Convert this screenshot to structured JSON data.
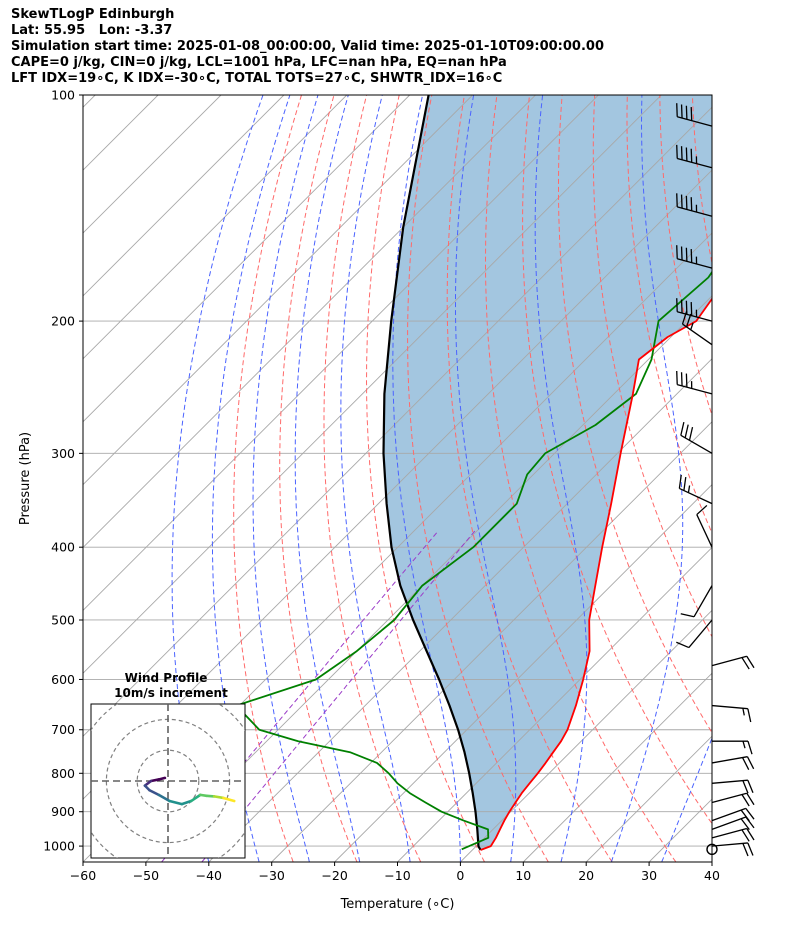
{
  "header": {
    "line1": "SkewTLogP Edinburgh",
    "line2": "Lat: 55.95   Lon: -3.37",
    "line3": "Simulation start time: 2025-01-08_00:00:00, Valid time: 2025-01-10T09:00:00.00",
    "line4": "CAPE=0 j/kg, CIN=0 j/kg, LCL=1001 hPa, LFC=nan hPa, EQ=nan hPa",
    "line5": "LFT IDX=19∘C, K IDX=-30∘C, TOTAL TOTS=27∘C, SHWTR_IDX=16∘C"
  },
  "chart_data": {
    "type": "skewt-logp",
    "xlabel": "Temperature (∘C)",
    "ylabel": "Pressure (hPa)",
    "xlim": [
      -60,
      40
    ],
    "ylim": [
      1050,
      100
    ],
    "y_scale": "log",
    "grid": true,
    "x_ticks": [
      -60,
      -50,
      -40,
      -30,
      -20,
      -10,
      0,
      10,
      20,
      30,
      40
    ],
    "y_ticks": [
      1000,
      900,
      800,
      700,
      600,
      500,
      400,
      300,
      200,
      100
    ],
    "colors": {
      "temperature": "#ff0000",
      "dewpoint": "#008000",
      "parcel": "#000000",
      "fill": "#a3c6e0",
      "dry_adiabats": "#ff6a6a",
      "moist_adiabats": "#4b63ff",
      "mixing_ratio": "#9b3cc8",
      "isotherms": "#a8a8a8"
    },
    "temperature": [
      {
        "p": 1012,
        "t": 1.3
      },
      {
        "p": 1000,
        "t": 2.3
      },
      {
        "p": 975,
        "t": 1.8
      },
      {
        "p": 950,
        "t": 1.1
      },
      {
        "p": 925,
        "t": 0.4
      },
      {
        "p": 900,
        "t": -0.2
      },
      {
        "p": 875,
        "t": -0.7
      },
      {
        "p": 850,
        "t": -1.2
      },
      {
        "p": 825,
        "t": -1.5
      },
      {
        "p": 800,
        "t": -1.8
      },
      {
        "p": 775,
        "t": -2.2
      },
      {
        "p": 750,
        "t": -2.7
      },
      {
        "p": 725,
        "t": -3.2
      },
      {
        "p": 700,
        "t": -4.0
      },
      {
        "p": 650,
        "t": -6.5
      },
      {
        "p": 600,
        "t": -9.5
      },
      {
        "p": 550,
        "t": -13.0
      },
      {
        "p": 500,
        "t": -18.0
      },
      {
        "p": 450,
        "t": -22.5
      },
      {
        "p": 400,
        "t": -27.5
      },
      {
        "p": 350,
        "t": -33.0
      },
      {
        "p": 300,
        "t": -39.5
      },
      {
        "p": 250,
        "t": -47.0
      },
      {
        "p": 225,
        "t": -51.5
      },
      {
        "p": 210,
        "t": -50.5
      },
      {
        "p": 200,
        "t": -48.5
      },
      {
        "p": 175,
        "t": -50.5
      },
      {
        "p": 150,
        "t": -51.5
      },
      {
        "p": 125,
        "t": -53.0
      },
      {
        "p": 100,
        "t": -54.5
      }
    ],
    "dewpoint": [
      {
        "p": 1010,
        "t": -1.8
      },
      {
        "p": 975,
        "t": 0.6
      },
      {
        "p": 950,
        "t": -0.8
      },
      {
        "p": 925,
        "t": -6.0
      },
      {
        "p": 900,
        "t": -11.0
      },
      {
        "p": 875,
        "t": -15.0
      },
      {
        "p": 850,
        "t": -19.0
      },
      {
        "p": 825,
        "t": -22.5
      },
      {
        "p": 800,
        "t": -25.5
      },
      {
        "p": 775,
        "t": -29.0
      },
      {
        "p": 750,
        "t": -35.0
      },
      {
        "p": 725,
        "t": -45.0
      },
      {
        "p": 700,
        "t": -53.0
      },
      {
        "p": 650,
        "t": -60.5
      },
      {
        "p": 600,
        "t": -52.0
      },
      {
        "p": 550,
        "t": -50.0
      },
      {
        "p": 500,
        "t": -49.0
      },
      {
        "p": 450,
        "t": -50.0
      },
      {
        "p": 400,
        "t": -48.0
      },
      {
        "p": 350,
        "t": -48.0
      },
      {
        "p": 320,
        "t": -51.0
      },
      {
        "p": 300,
        "t": -51.5
      },
      {
        "p": 275,
        "t": -48.0
      },
      {
        "p": 250,
        "t": -46.5
      },
      {
        "p": 225,
        "t": -49.5
      },
      {
        "p": 200,
        "t": -54.5
      },
      {
        "p": 175,
        "t": -53.5
      },
      {
        "p": 150,
        "t": -56.0
      },
      {
        "p": 125,
        "t": -57.0
      },
      {
        "p": 100,
        "t": -57.5
      }
    ],
    "parcel": [
      {
        "p": 1012,
        "t": 1.3
      },
      {
        "p": 1001,
        "t": 0.4
      },
      {
        "p": 950,
        "t": -2.5
      },
      {
        "p": 900,
        "t": -5.6
      },
      {
        "p": 850,
        "t": -9.0
      },
      {
        "p": 800,
        "t": -12.7
      },
      {
        "p": 750,
        "t": -16.8
      },
      {
        "p": 700,
        "t": -21.4
      },
      {
        "p": 650,
        "t": -26.6
      },
      {
        "p": 600,
        "t": -32.4
      },
      {
        "p": 550,
        "t": -38.9
      },
      {
        "p": 500,
        "t": -46.0
      },
      {
        "p": 450,
        "t": -53.5
      },
      {
        "p": 400,
        "t": -61.0
      },
      {
        "p": 350,
        "t": -68.7
      },
      {
        "p": 300,
        "t": -77.2
      },
      {
        "p": 250,
        "t": -86.5
      },
      {
        "p": 200,
        "t": -97.0
      },
      {
        "p": 150,
        "t": -110.0
      },
      {
        "p": 100,
        "t": -127.0
      }
    ],
    "wind_barbs": [
      {
        "p": 1010,
        "kind": "calm"
      },
      {
        "p": 1000,
        "speed_kt": 20,
        "dir_deg": 85
      },
      {
        "p": 975,
        "speed_kt": 20,
        "dir_deg": 75
      },
      {
        "p": 950,
        "speed_kt": 20,
        "dir_deg": 70
      },
      {
        "p": 925,
        "speed_kt": 20,
        "dir_deg": 70
      },
      {
        "p": 875,
        "speed_kt": 20,
        "dir_deg": 75
      },
      {
        "p": 825,
        "speed_kt": 20,
        "dir_deg": 85
      },
      {
        "p": 775,
        "speed_kt": 20,
        "dir_deg": 80
      },
      {
        "p": 725,
        "speed_kt": 15,
        "dir_deg": 90
      },
      {
        "p": 650,
        "speed_kt": 15,
        "dir_deg": 95
      },
      {
        "p": 575,
        "speed_kt": 20,
        "dir_deg": 75
      },
      {
        "p": 500,
        "speed_kt": 10,
        "dir_deg": 220
      },
      {
        "p": 450,
        "speed_kt": 10,
        "dir_deg": 210
      },
      {
        "p": 400,
        "speed_kt": 10,
        "dir_deg": 335
      },
      {
        "p": 350,
        "speed_kt": 25,
        "dir_deg": 295
      },
      {
        "p": 300,
        "speed_kt": 30,
        "dir_deg": 300
      },
      {
        "p": 250,
        "speed_kt": 35,
        "dir_deg": 285
      },
      {
        "p": 215,
        "speed_kt": 25,
        "dir_deg": 305
      },
      {
        "p": 200,
        "speed_kt": 45,
        "dir_deg": 285
      },
      {
        "p": 170,
        "speed_kt": 45,
        "dir_deg": 285
      },
      {
        "p": 145,
        "speed_kt": 45,
        "dir_deg": 285
      },
      {
        "p": 125,
        "speed_kt": 45,
        "dir_deg": 285
      },
      {
        "p": 110,
        "speed_kt": 40,
        "dir_deg": 285
      }
    ],
    "hodograph": {
      "title": "Wind Profile",
      "subtitle": "10m/s increment",
      "rings_ms": [
        10,
        20,
        30
      ],
      "range_ms": [
        -25,
        25
      ],
      "colormap": "viridis",
      "points": [
        {
          "u": -1.0,
          "v": 1.0
        },
        {
          "u": -3.0,
          "v": 0.5
        },
        {
          "u": -5.5,
          "v": 0.0
        },
        {
          "u": -7.5,
          "v": -1.5
        },
        {
          "u": -6.0,
          "v": -3.0
        },
        {
          "u": -3.0,
          "v": -4.5
        },
        {
          "u": 0.5,
          "v": -6.5
        },
        {
          "u": 4.5,
          "v": -7.5
        },
        {
          "u": 7.5,
          "v": -6.5
        },
        {
          "u": 10.5,
          "v": -4.5
        },
        {
          "u": 12.5,
          "v": -4.8
        },
        {
          "u": 15.0,
          "v": -5.0
        },
        {
          "u": 18.0,
          "v": -5.5
        },
        {
          "u": 21.5,
          "v": -6.5
        }
      ]
    }
  }
}
